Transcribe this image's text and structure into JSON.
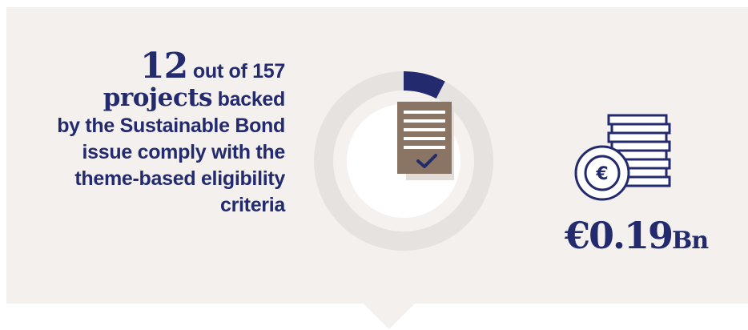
{
  "stat": {
    "count": "12",
    "out_of": "out of 157",
    "projects_word": "projects",
    "backed": "backed",
    "line3": "by the Sustainable Bond",
    "line4": "issue comply with the",
    "line5": "theme-based eligibility",
    "line6": "criteria"
  },
  "donut": {
    "compliant": 12,
    "total": 157,
    "accent_color": "#232a6e",
    "track_color": "#e6e2df",
    "icon": "document-check-icon"
  },
  "amount": {
    "value": "€0.19",
    "unit": "Bn",
    "icon": "euro-coins-stack-icon"
  },
  "colors": {
    "panel_background": "#f3f0ed",
    "text": "#232a6e",
    "document": "#8a7565"
  }
}
